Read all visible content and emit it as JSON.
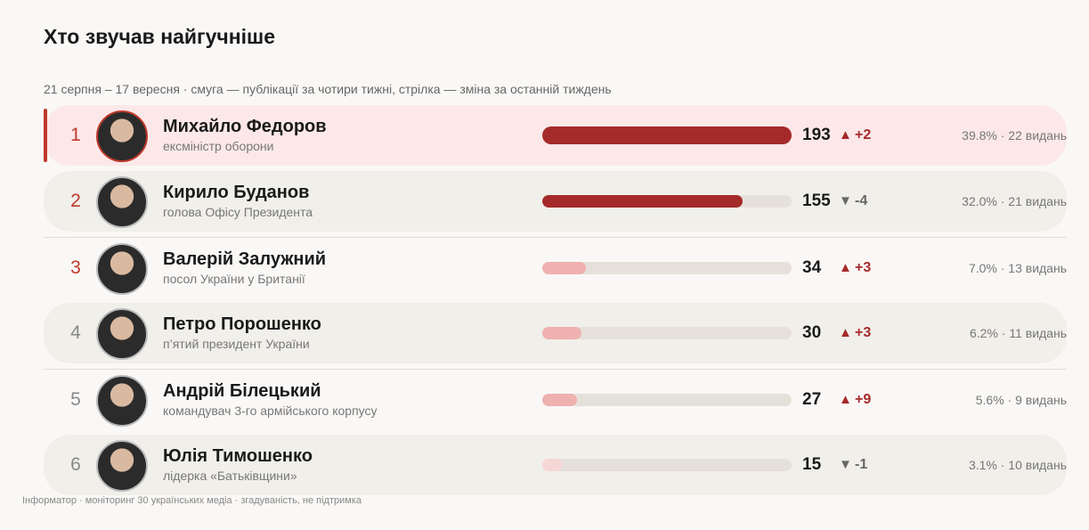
{
  "header": {
    "title": "Хто звучав найгучніше",
    "subtitle": "21 серпня – 17 вересня · смуга — публікації за чотири тижні, стрілка — зміна за останній тиждень"
  },
  "rows": [
    {
      "rank": "1",
      "name": "Михайло Федоров",
      "role": "ексміністр оборони",
      "value": 193,
      "change": "+2",
      "share": "39.8% · 22 видань",
      "bar_color": "#a52a2a"
    },
    {
      "rank": "2",
      "name": "Кирило Буданов",
      "role": "голова Офісу Президента",
      "value": 155,
      "change": "-4",
      "share": "32.0% · 21 видань",
      "bar_color": "#a52a2a"
    },
    {
      "rank": "3",
      "name": "Валерій Залужний",
      "role": "посол України у Британії",
      "value": 34,
      "change": "+3",
      "share": "7.0% · 13 видань",
      "bar_color": "#efb0b0"
    },
    {
      "rank": "4",
      "name": "Петро Порошенко",
      "role": "п’ятий президент України",
      "value": 30,
      "change": "+3",
      "share": "6.2% · 11 видань",
      "bar_color": "#efb0b0"
    },
    {
      "rank": "5",
      "name": "Андрій Білецький",
      "role": "командувач 3-го армійського корпусу",
      "value": 27,
      "change": "+9",
      "share": "5.6% · 9 видань",
      "bar_color": "#efb0b0"
    },
    {
      "rank": "6",
      "name": "Юлія Тимошенко",
      "role": "лідерка «Батьківщини»",
      "value": 15,
      "change": "-1",
      "share": "3.1% · 10 видань",
      "bar_color": "#f7d6d6"
    }
  ],
  "footer": "Інформатор · моніторинг 30 українських медіа · згадуваність, не підтримка"
}
